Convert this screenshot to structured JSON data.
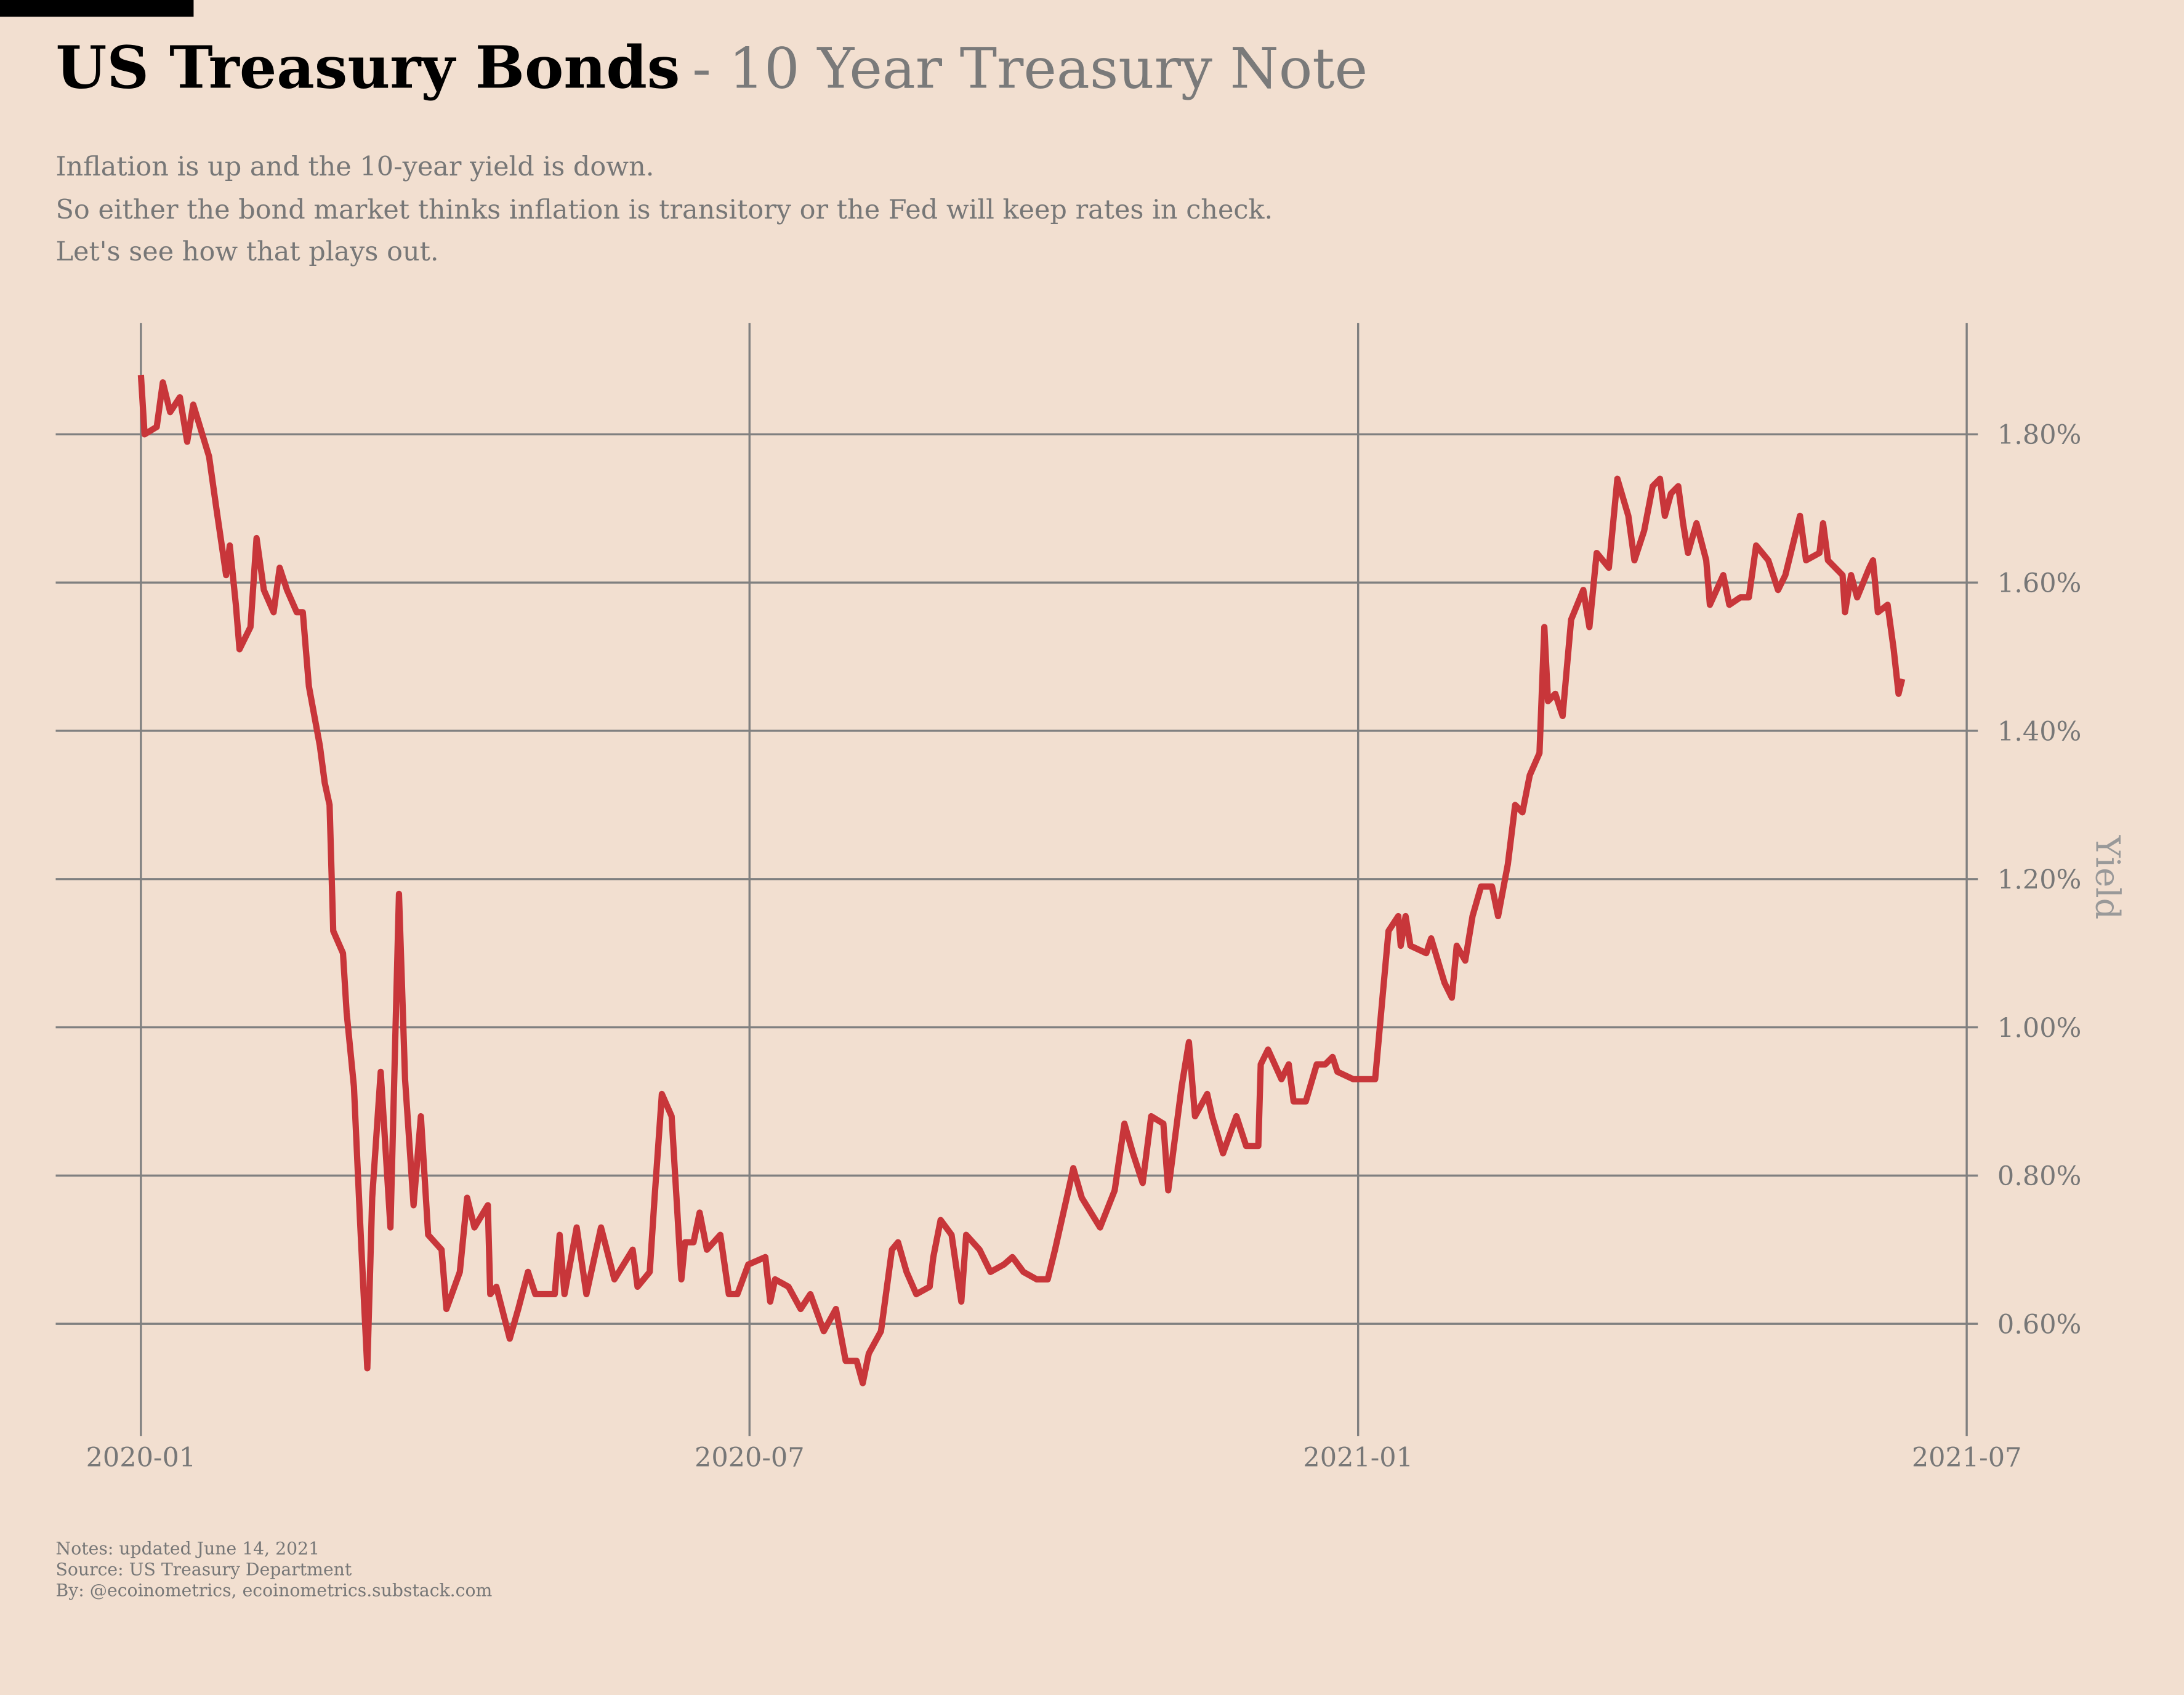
{
  "chart_data": {
    "type": "line",
    "title": "US Treasury Bonds",
    "subtitle": "- 10 Year Treasury Note",
    "description": [
      "Inflation is up and the 10-year yield is down.",
      "So either the bond market thinks inflation is transitory or the Fed will keep rates in check.",
      "Let's see how that plays out."
    ],
    "notes": [
      "Notes: updated June 14, 2021",
      "Source: US Treasury Department",
      "By: @ecoinometrics, ecoinometrics.substack.com"
    ],
    "y_label": "Yield",
    "color": "#c8363a",
    "grid": true,
    "xlim": [
      2019.93,
      2021.5
    ],
    "xticks": [
      {
        "value": 2020.0,
        "label": "2020-01"
      },
      {
        "value": 2020.5,
        "label": "2020-07"
      },
      {
        "value": 2021.0,
        "label": "2021-01"
      },
      {
        "value": 2021.5,
        "label": "2021-07"
      }
    ],
    "ylim": [
      0.46,
      1.95
    ],
    "yticks": [
      {
        "value": 0.6,
        "label": "0.60%"
      },
      {
        "value": 0.8,
        "label": "0.80%"
      },
      {
        "value": 1.0,
        "label": "1.00%"
      },
      {
        "value": 1.2,
        "label": "1.20%"
      },
      {
        "value": 1.4,
        "label": "1.40%"
      },
      {
        "value": 1.6,
        "label": "1.60%"
      },
      {
        "value": 1.8,
        "label": "1.80%"
      }
    ],
    "x": [
      2020.0,
      2020.003,
      2020.013,
      2020.018,
      2020.024,
      2020.032,
      2020.038,
      2020.043,
      2020.056,
      2020.062,
      2020.07,
      2020.073,
      2020.078,
      2020.081,
      2020.09,
      2020.095,
      2020.101,
      2020.109,
      2020.114,
      2020.12,
      2020.128,
      2020.133,
      2020.138,
      2020.147,
      2020.151,
      2020.155,
      2020.158,
      2020.166,
      2020.169,
      2020.175,
      2020.18,
      2020.186,
      2020.19,
      2020.197,
      2020.205,
      2020.212,
      2020.217,
      2020.224,
      2020.23,
      2020.236,
      2020.247,
      2020.251,
      2020.262,
      2020.268,
      2020.274,
      2020.285,
      2020.287,
      2020.292,
      2020.303,
      2020.31,
      2020.318,
      2020.324,
      2020.34,
      2020.344,
      2020.348,
      2020.358,
      2020.366,
      2020.378,
      2020.389,
      2020.404,
      2020.408,
      2020.418,
      2020.422,
      2020.428,
      2020.436,
      2020.444,
      2020.447,
      2020.454,
      2020.459,
      2020.465,
      2020.476,
      2020.483,
      2020.49,
      2020.499,
      2020.513,
      2020.517,
      2020.521,
      2020.532,
      2020.542,
      2020.55,
      2020.561,
      2020.571,
      2020.579,
      2020.588,
      2020.593,
      2020.598,
      2020.608,
      2020.617,
      2020.622,
      2020.629,
      2020.637,
      2020.648,
      2020.651,
      2020.657,
      2020.666,
      2020.674,
      2020.678,
      2020.689,
      2020.698,
      2020.709,
      2020.716,
      2020.725,
      2020.736,
      2020.745,
      2020.751,
      2020.762,
      2020.766,
      2020.773,
      2020.788,
      2020.8,
      2020.808,
      2020.815,
      2020.823,
      2020.83,
      2020.84,
      2020.844,
      2020.855,
      2020.861,
      2020.866,
      2020.876,
      2020.88,
      2020.889,
      2020.9,
      2020.908,
      2020.918,
      2020.92,
      2020.926,
      2020.937,
      2020.943,
      2020.947,
      2020.957,
      2020.966,
      2020.973,
      2020.979,
      2020.983,
      2020.996,
      2021.014,
      2021.02,
      2021.025,
      2021.033,
      2021.035,
      2021.039,
      2021.043,
      2021.056,
      2021.06,
      2021.071,
      2021.077,
      2021.081,
      2021.088,
      2021.094,
      2021.101,
      2021.11,
      2021.115,
      2021.123,
      2021.129,
      2021.135,
      2021.141,
      2021.149,
      2021.153,
      2021.156,
      2021.162,
      2021.168,
      2021.175,
      2021.185,
      2021.19,
      2021.196,
      2021.206,
      2021.213,
      2021.222,
      2021.227,
      2021.235,
      2021.242,
      2021.248,
      2021.252,
      2021.257,
      2021.263,
      2021.267,
      2021.271,
      2021.278,
      2021.286,
      2021.289,
      2021.3,
      2021.305,
      2021.314,
      2021.321,
      2021.327,
      2021.337,
      2021.345,
      2021.351,
      2021.363,
      2021.368,
      2021.379,
      2021.382,
      2021.386,
      2021.398,
      2021.4,
      2021.405,
      2021.41,
      2021.42,
      2021.423,
      2021.427,
      2021.435,
      2021.44,
      2021.444,
      2021.447
    ],
    "values": [
      1.88,
      1.8,
      1.81,
      1.87,
      1.83,
      1.85,
      1.79,
      1.84,
      1.77,
      1.7,
      1.61,
      1.65,
      1.57,
      1.51,
      1.54,
      1.66,
      1.59,
      1.56,
      1.62,
      1.59,
      1.56,
      1.56,
      1.46,
      1.38,
      1.33,
      1.3,
      1.13,
      1.1,
      1.02,
      0.92,
      0.74,
      0.54,
      0.77,
      0.94,
      0.73,
      1.18,
      0.93,
      0.76,
      0.88,
      0.72,
      0.7,
      0.62,
      0.67,
      0.77,
      0.73,
      0.76,
      0.64,
      0.65,
      0.58,
      0.62,
      0.67,
      0.64,
      0.64,
      0.72,
      0.64,
      0.73,
      0.64,
      0.73,
      0.66,
      0.7,
      0.65,
      0.67,
      0.77,
      0.91,
      0.88,
      0.66,
      0.71,
      0.71,
      0.75,
      0.7,
      0.72,
      0.64,
      0.64,
      0.68,
      0.69,
      0.63,
      0.66,
      0.65,
      0.62,
      0.64,
      0.59,
      0.62,
      0.55,
      0.55,
      0.52,
      0.56,
      0.59,
      0.7,
      0.71,
      0.67,
      0.64,
      0.65,
      0.69,
      0.74,
      0.72,
      0.63,
      0.72,
      0.7,
      0.67,
      0.68,
      0.69,
      0.67,
      0.66,
      0.66,
      0.7,
      0.78,
      0.81,
      0.77,
      0.73,
      0.78,
      0.87,
      0.83,
      0.79,
      0.88,
      0.87,
      0.78,
      0.92,
      0.98,
      0.88,
      0.91,
      0.88,
      0.83,
      0.88,
      0.84,
      0.84,
      0.95,
      0.97,
      0.93,
      0.95,
      0.9,
      0.9,
      0.95,
      0.95,
      0.96,
      0.94,
      0.93,
      0.93,
      1.04,
      1.13,
      1.15,
      1.11,
      1.15,
      1.11,
      1.1,
      1.12,
      1.06,
      1.04,
      1.11,
      1.09,
      1.15,
      1.19,
      1.19,
      1.15,
      1.22,
      1.3,
      1.29,
      1.34,
      1.37,
      1.54,
      1.44,
      1.45,
      1.42,
      1.55,
      1.59,
      1.54,
      1.64,
      1.62,
      1.74,
      1.69,
      1.63,
      1.67,
      1.73,
      1.74,
      1.69,
      1.72,
      1.73,
      1.68,
      1.64,
      1.68,
      1.63,
      1.57,
      1.61,
      1.57,
      1.58,
      1.58,
      1.65,
      1.63,
      1.59,
      1.61,
      1.69,
      1.63,
      1.64,
      1.68,
      1.63,
      1.61,
      1.56,
      1.61,
      1.58,
      1.62,
      1.63,
      1.56,
      1.57,
      1.51,
      1.45,
      1.47
    ]
  }
}
